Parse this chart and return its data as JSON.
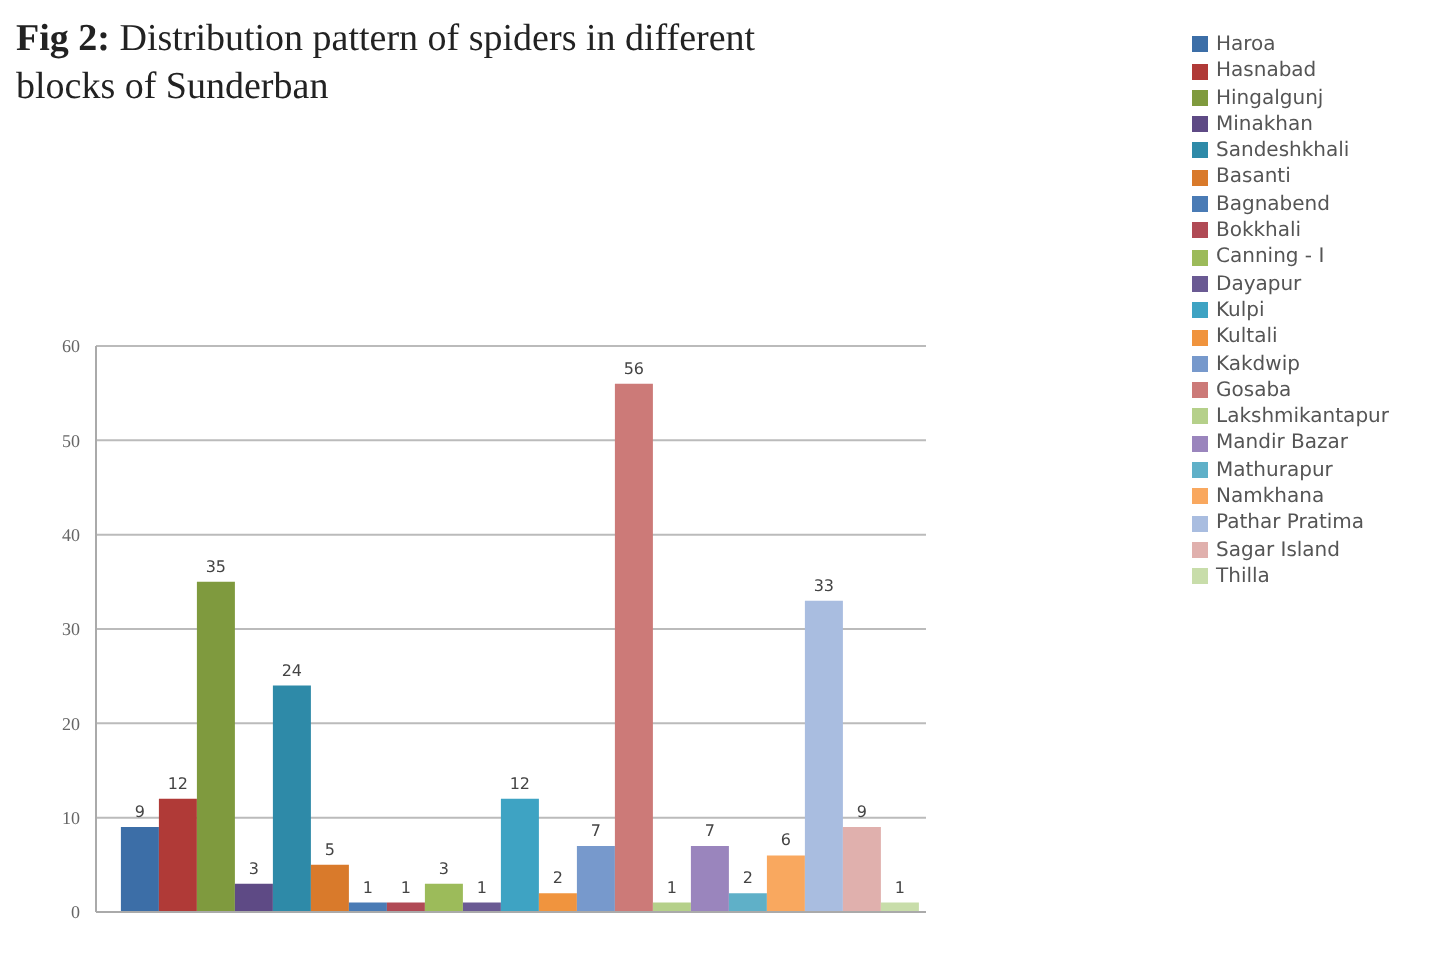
{
  "chart_data": {
    "type": "bar",
    "title": "Fig 2: Distribution pattern of spiders in different blocks of Sunderban",
    "categories": [
      null
    ],
    "ylim": [
      0,
      60
    ],
    "yticks": [
      0,
      10,
      20,
      30,
      40,
      50,
      60
    ],
    "grid": "y",
    "legend": "right",
    "data_labels": true,
    "series": [
      {
        "name": "Haroa",
        "color": "#3c6ea7",
        "values": [
          9
        ]
      },
      {
        "name": "Hasnabad",
        "color": "#b03a37",
        "values": [
          12
        ]
      },
      {
        "name": "Hingalgunj",
        "color": "#7f9a3e",
        "values": [
          35
        ]
      },
      {
        "name": "Minakhan",
        "color": "#5e4a85",
        "values": [
          3
        ]
      },
      {
        "name": "Sandeshkhali",
        "color": "#2e8aa8",
        "values": [
          24
        ]
      },
      {
        "name": "Basanti",
        "color": "#d97a2b",
        "values": [
          5
        ]
      },
      {
        "name": "Bagnabend",
        "color": "#4a7bb5",
        "values": [
          1
        ]
      },
      {
        "name": "Bokkhali",
        "color": "#b04a55",
        "values": [
          1
        ]
      },
      {
        "name": "Canning - I",
        "color": "#9cbb5a",
        "values": [
          3
        ]
      },
      {
        "name": "Dayapur",
        "color": "#6a5a93",
        "values": [
          1
        ]
      },
      {
        "name": "Kulpi",
        "color": "#3ea3c3",
        "values": [
          12
        ]
      },
      {
        "name": "Kultali",
        "color": "#f0943e",
        "values": [
          2
        ]
      },
      {
        "name": "Kakdwip",
        "color": "#7799cc",
        "values": [
          7
        ]
      },
      {
        "name": "Gosaba",
        "color": "#cc7a78",
        "values": [
          56
        ]
      },
      {
        "name": "Lakshmikantapur",
        "color": "#b5d08a",
        "values": [
          1
        ]
      },
      {
        "name": "Mandir Bazar",
        "color": "#9a85bd",
        "values": [
          7
        ]
      },
      {
        "name": "Mathurapur",
        "color": "#5fb0c8",
        "values": [
          2
        ]
      },
      {
        "name": "Namkhana",
        "color": "#f9a85f",
        "values": [
          6
        ]
      },
      {
        "name": "Pathar Pratima",
        "color": "#a9bde0",
        "values": [
          33
        ]
      },
      {
        "name": "Sagar Island",
        "color": "#e0b0ad",
        "values": [
          9
        ]
      },
      {
        "name": "Thilla",
        "color": "#c8ddaa",
        "values": [
          1
        ]
      }
    ]
  }
}
